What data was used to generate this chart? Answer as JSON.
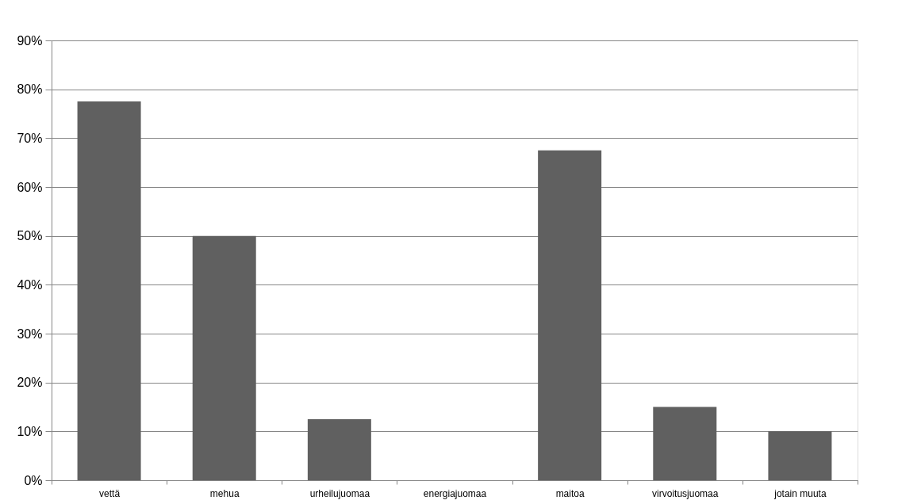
{
  "chart_data": {
    "type": "bar",
    "categories": [
      "vettä",
      "mehua",
      "urheilujuomaa",
      "energiajuomaa",
      "maitoa",
      "virvoitusjuomaa",
      "jotain muuta"
    ],
    "values": [
      77.5,
      50,
      12.5,
      0,
      67.5,
      15,
      10
    ],
    "color": "#606060",
    "ylim": [
      0,
      90
    ],
    "yticks": [
      {
        "value": 0,
        "label": "0%"
      },
      {
        "value": 10,
        "label": "10%"
      },
      {
        "value": 20,
        "label": "20%"
      },
      {
        "value": 30,
        "label": "30%"
      },
      {
        "value": 40,
        "label": "40%"
      },
      {
        "value": 50,
        "label": "50%"
      },
      {
        "value": 60,
        "label": "60%"
      },
      {
        "value": 70,
        "label": "70%"
      },
      {
        "value": 80,
        "label": "80%"
      },
      {
        "value": 90,
        "label": "90%"
      }
    ],
    "grid": "y"
  }
}
